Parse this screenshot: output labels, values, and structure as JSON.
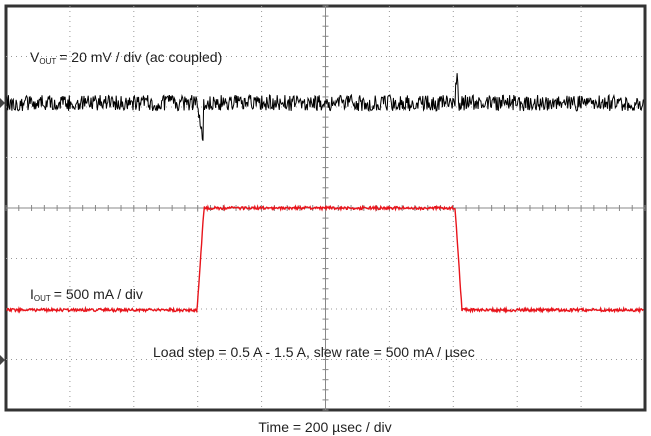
{
  "annotations": {
    "vout": {
      "symbol": "V",
      "subscript": "OUT",
      "text": "= 20 mV / div (ac coupled)"
    },
    "iout": {
      "symbol": "I",
      "subscript": "OUT",
      "text": "= 500 mA / div"
    },
    "load_step": "Load step = 0.5 A - 1.5 A, slew rate = 500 mA / µsec",
    "time": "Time = 200 µsec / div"
  }
}
